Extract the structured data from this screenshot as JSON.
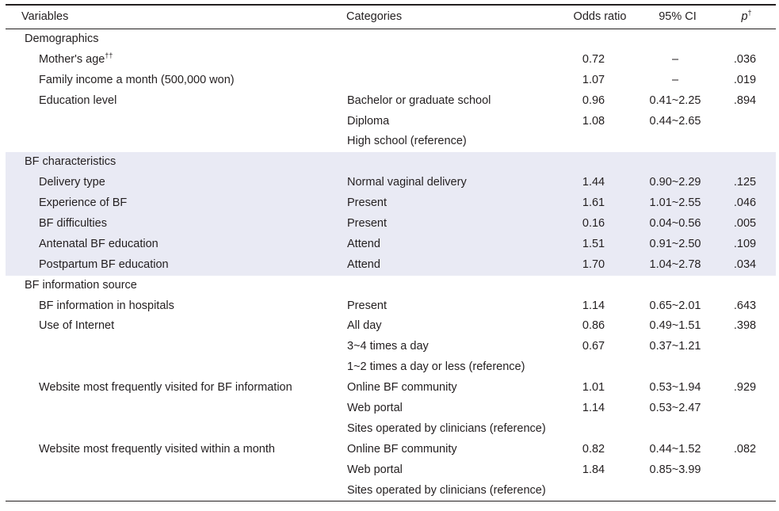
{
  "header": {
    "variables": "Variables",
    "categories": "Categories",
    "odds_ratio": "Odds ratio",
    "ci": "95% CI",
    "p": "p",
    "p_sup": "†"
  },
  "groups": [
    {
      "title": "Demographics",
      "shaded": false,
      "rows": [
        {
          "variable": "Mother's age",
          "variable_sup": "††",
          "category": "",
          "or": "0.72",
          "ci": "–",
          "p": ".036"
        },
        {
          "variable": "Family income a month (500,000 won)",
          "category": "",
          "or": "1.07",
          "ci": "–",
          "p": ".019"
        },
        {
          "variable": "Education level",
          "category": "Bachelor or graduate school",
          "or": "0.96",
          "ci": "0.41~2.25",
          "p": ".894"
        },
        {
          "variable": "",
          "category": "Diploma",
          "or": "1.08",
          "ci": "0.44~2.65",
          "p": ""
        },
        {
          "variable": "",
          "category": "High school (reference)",
          "or": "",
          "ci": "",
          "p": ""
        }
      ]
    },
    {
      "title": "BF characteristics",
      "shaded": true,
      "rows": [
        {
          "variable": "Delivery type",
          "category": "Normal vaginal delivery",
          "or": "1.44",
          "ci": "0.90~2.29",
          "p": ".125"
        },
        {
          "variable": "Experience of BF",
          "category": "Present",
          "or": "1.61",
          "ci": "1.01~2.55",
          "p": ".046"
        },
        {
          "variable": "BF difficulties",
          "category": "Present",
          "or": "0.16",
          "ci": "0.04~0.56",
          "p": ".005"
        },
        {
          "variable": "Antenatal BF education",
          "category": "Attend",
          "or": "1.51",
          "ci": "0.91~2.50",
          "p": ".109"
        },
        {
          "variable": "Postpartum BF education",
          "category": "Attend",
          "or": "1.70",
          "ci": "1.04~2.78",
          "p": ".034"
        }
      ]
    },
    {
      "title": "BF information source",
      "shaded": false,
      "rows": [
        {
          "variable": "BF information in hospitals",
          "category": "Present",
          "or": "1.14",
          "ci": "0.65~2.01",
          "p": ".643"
        },
        {
          "variable": "Use of Internet",
          "category": "All day",
          "or": "0.86",
          "ci": "0.49~1.51",
          "p": ".398"
        },
        {
          "variable": "",
          "category": "3~4 times a day",
          "or": "0.67",
          "ci": "0.37~1.21",
          "p": ""
        },
        {
          "variable": "",
          "category": "1~2 times a day or less (reference)",
          "or": "",
          "ci": "",
          "p": ""
        },
        {
          "variable": "Website most frequently visited for BF information",
          "category": "Online BF community",
          "or": "1.01",
          "ci": "0.53~1.94",
          "p": ".929"
        },
        {
          "variable": "",
          "category": "Web portal",
          "or": "1.14",
          "ci": "0.53~2.47",
          "p": ""
        },
        {
          "variable": "",
          "category": "Sites operated by clinicians (reference)",
          "or": "",
          "ci": "",
          "p": ""
        },
        {
          "variable": "Website most frequently visited within a month",
          "category": "Online BF community",
          "or": "0.82",
          "ci": "0.44~1.52",
          "p": ".082"
        },
        {
          "variable": "",
          "category": "Web portal",
          "or": "1.84",
          "ci": "0.85~3.99",
          "p": ""
        },
        {
          "variable": "",
          "category": "Sites operated by clinicians (reference)",
          "or": "",
          "ci": "",
          "p": ""
        }
      ]
    }
  ]
}
